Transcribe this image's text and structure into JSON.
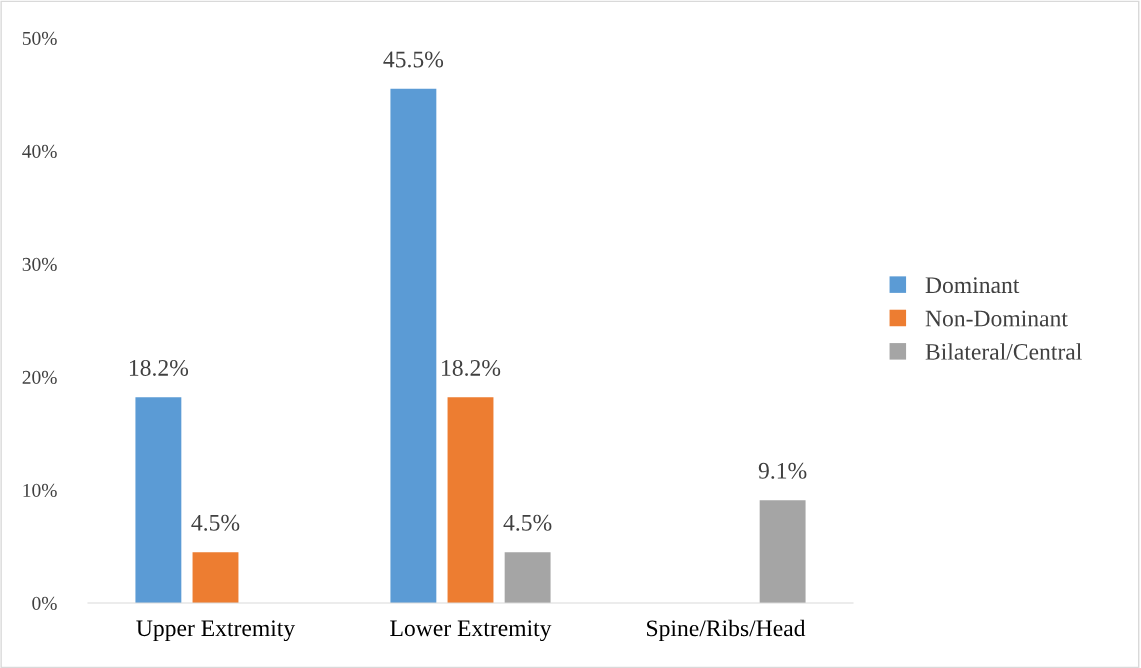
{
  "chart_data": {
    "type": "bar",
    "categories": [
      "Upper Extremity",
      "Lower Extremity",
      "Spine/Ribs/Head"
    ],
    "series": [
      {
        "name": "Dominant",
        "color": "#5b9bd5",
        "values": [
          18.2,
          45.5,
          null
        ],
        "value_labels": [
          "18.2%",
          "45.5%",
          null
        ]
      },
      {
        "name": "Non-Dominant",
        "color": "#ed7d31",
        "values": [
          4.5,
          18.2,
          null
        ],
        "value_labels": [
          "4.5%",
          "18.2%",
          null
        ]
      },
      {
        "name": "Bilateral/Central",
        "color": "#a5a5a5",
        "values": [
          null,
          4.5,
          9.1
        ],
        "value_labels": [
          null,
          "4.5%",
          "9.1%"
        ]
      }
    ],
    "ylim": [
      0,
      50
    ],
    "yticks": [
      {
        "value": 0,
        "label": "0%"
      },
      {
        "value": 10,
        "label": "10%"
      },
      {
        "value": 20,
        "label": "20%"
      },
      {
        "value": 30,
        "label": "30%"
      },
      {
        "value": 40,
        "label": "40%"
      },
      {
        "value": 50,
        "label": "50%"
      }
    ],
    "grid": false,
    "legend": "right"
  }
}
